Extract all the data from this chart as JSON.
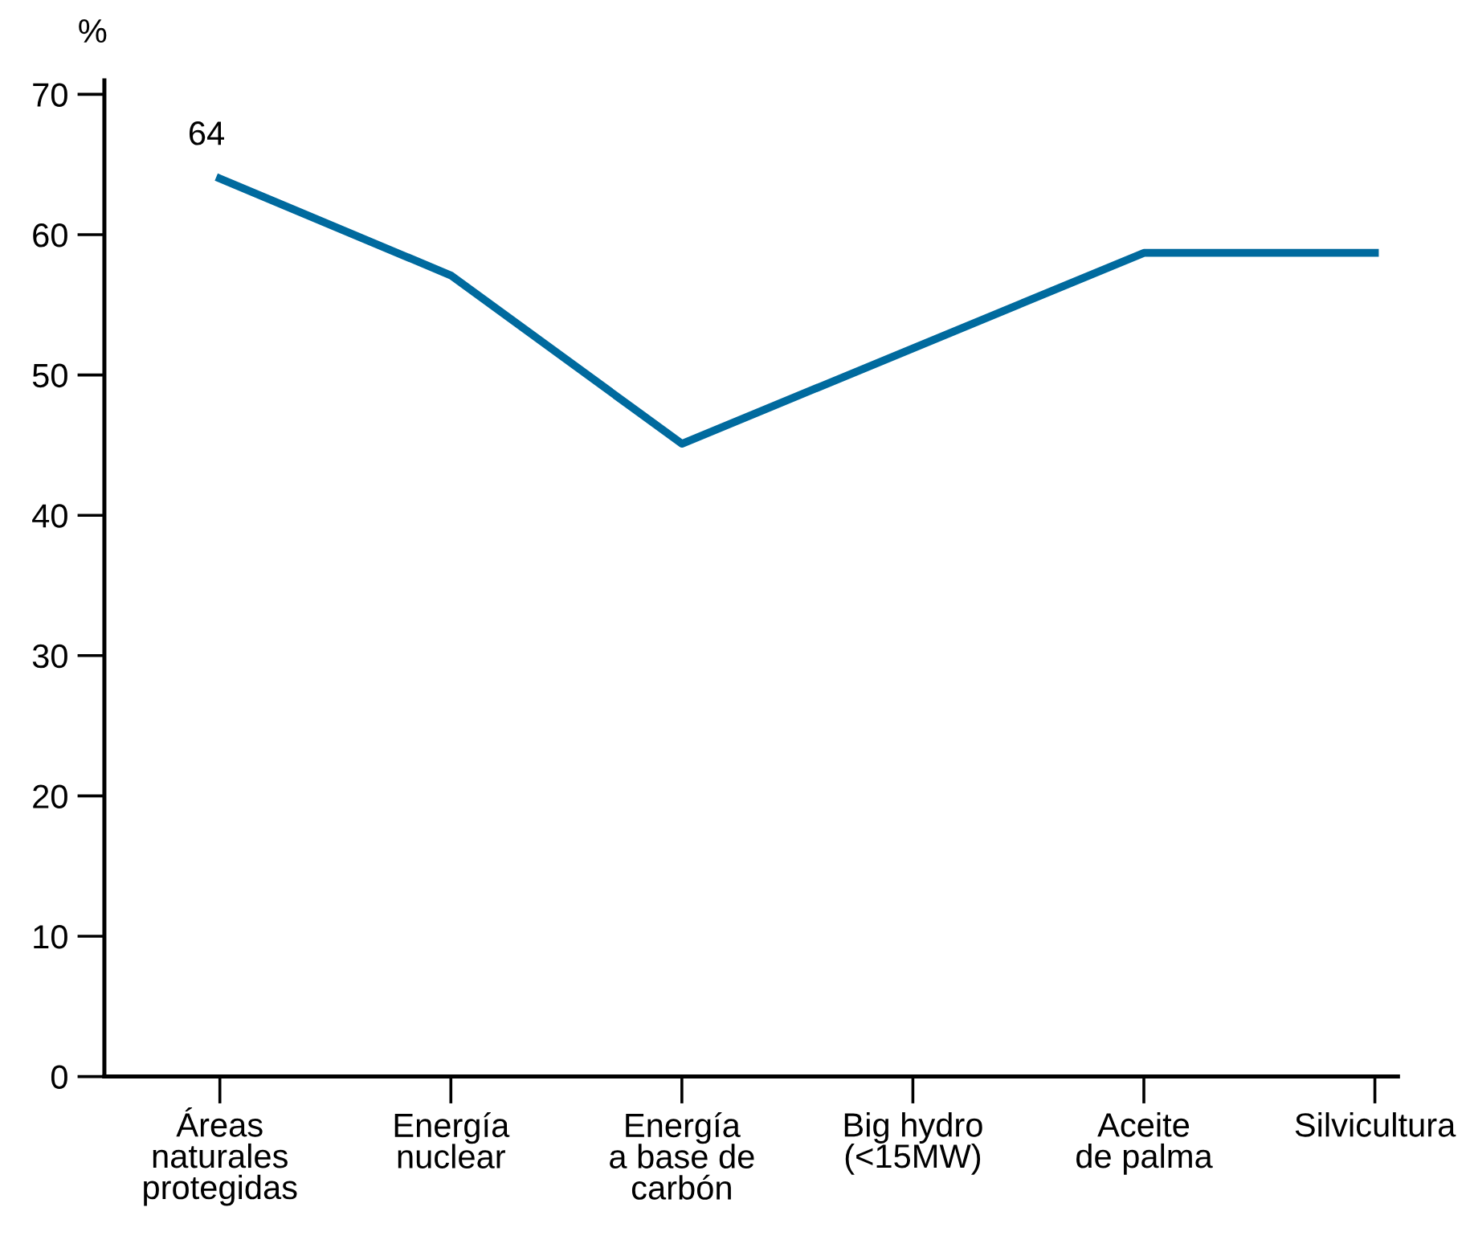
{
  "chart_data": {
    "type": "line",
    "ylabel": "%",
    "categories": [
      "Áreas\nnaturales\nprotegidas",
      "Energía\nnuclear",
      "Energía\na base de\ncarbón",
      "Big hydro\n(<15MW)",
      "Aceite\nde palma",
      "Silvicultura"
    ],
    "series": [
      {
        "color": "#006a9e",
        "values": [
          64,
          57.1,
          45.1,
          51.9,
          58.7,
          58.7
        ],
        "value_labels": [
          "64",
          null,
          null,
          null,
          null,
          null
        ]
      }
    ],
    "ylim": [
      0,
      71
    ],
    "yticks": [
      0,
      10,
      20,
      30,
      40,
      50,
      60,
      70
    ],
    "marker": "none",
    "line_style": "solid"
  }
}
